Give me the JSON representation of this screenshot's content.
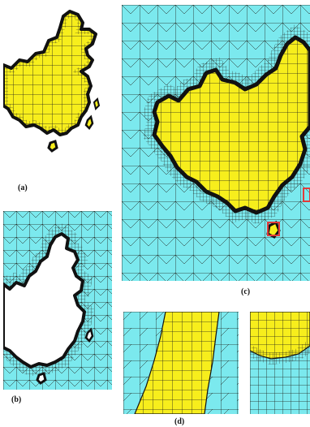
{
  "labels": {
    "a": "(a)",
    "b": "(b)",
    "c": "(c)",
    "d": "(d)"
  },
  "colors": {
    "land": "#f7ee1c",
    "sea": "#7be9ee",
    "coast": "#111111",
    "grid": "#20201a",
    "highlight": "#e23b3b",
    "background": "#ffffff"
  }
}
